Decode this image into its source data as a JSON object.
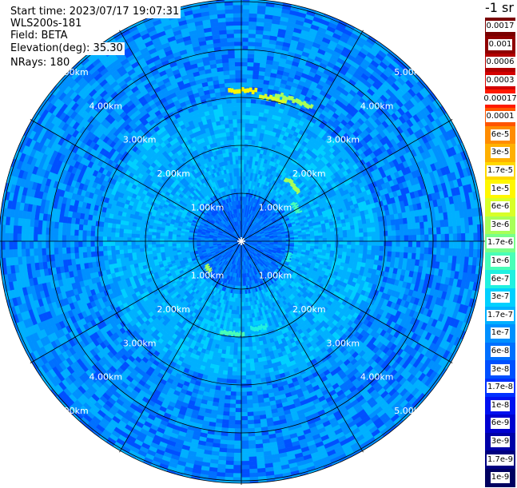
{
  "header": {
    "start_time": "Start time: 2023/07/17 19:07:31",
    "instrument": "WLS200s-181",
    "field": "Field: BETA",
    "elevation": "Elevation(deg): 35.30",
    "nrays": "NRays: 180"
  },
  "colorbar": {
    "unit": "-1 sr",
    "labels": [
      "0.0017",
      "0.001",
      "0.0006",
      "0.0003",
      "0.00017",
      "0.0001",
      "6e-5",
      "3e-5",
      "1.7e-5",
      "1e-5",
      "6e-6",
      "3e-6",
      "1.7e-6",
      "1e-6",
      "6e-7",
      "3e-7",
      "1.7e-7",
      "1e-7",
      "6e-8",
      "3e-8",
      "1.7e-8",
      "1e-8",
      "6e-9",
      "3e-9",
      "1.7e-9",
      "1e-9"
    ],
    "colors": [
      "#7a0000",
      "#8f0000",
      "#b20000",
      "#d40000",
      "#ff1a00",
      "#ff5500",
      "#ff8c00",
      "#ffb000",
      "#ffd800",
      "#fff700",
      "#d8ff28",
      "#a8ff58",
      "#78ff88",
      "#48ffb8",
      "#20f0e0",
      "#00d0ff",
      "#00b0ff",
      "#0090ff",
      "#0070ff",
      "#0050ff",
      "#0030ff",
      "#0010f0",
      "#0000d0",
      "#0000a8",
      "#000080",
      "#000060"
    ]
  },
  "chart_data": {
    "type": "heatmap",
    "projection": "polar (PPI scan)",
    "range_unit": "km",
    "range_rings": [
      1.0,
      2.0,
      3.0,
      4.0,
      5.0
    ],
    "range_labels": [
      "1.00km",
      "2.00km",
      "3.00km",
      "4.00km",
      "5.00km"
    ],
    "azimuth_spokes_deg": [
      0,
      30,
      60,
      90,
      120,
      150,
      180,
      210,
      240,
      270,
      300,
      330
    ],
    "max_range_km": 5.0,
    "nrays": 180,
    "field": "BETA",
    "color_scale": "log",
    "value_range": [
      1e-09,
      0.0017
    ],
    "background_level": 6e-08,
    "near_range_level": 1.7e-08,
    "annulus_level_2_3km": 1e-07,
    "features": [
      {
        "az_deg": 0,
        "range_km": 3.1,
        "value": 1e-05
      },
      {
        "az_deg": 12,
        "range_km": 3.0,
        "value": 6e-06
      },
      {
        "az_deg": 20,
        "range_km": 3.1,
        "value": 3e-06
      },
      {
        "az_deg": 42,
        "range_km": 1.55,
        "value": 3e-06
      },
      {
        "az_deg": 58,
        "range_km": 1.3,
        "value": 1e-06
      },
      {
        "az_deg": 108,
        "range_km": 1.0,
        "value": 6e-07
      },
      {
        "az_deg": 168,
        "range_km": 1.8,
        "value": 6e-07
      },
      {
        "az_deg": 185,
        "range_km": 1.9,
        "value": 1e-06
      },
      {
        "az_deg": 230,
        "range_km": 0.85,
        "value": 3e-06
      }
    ]
  }
}
